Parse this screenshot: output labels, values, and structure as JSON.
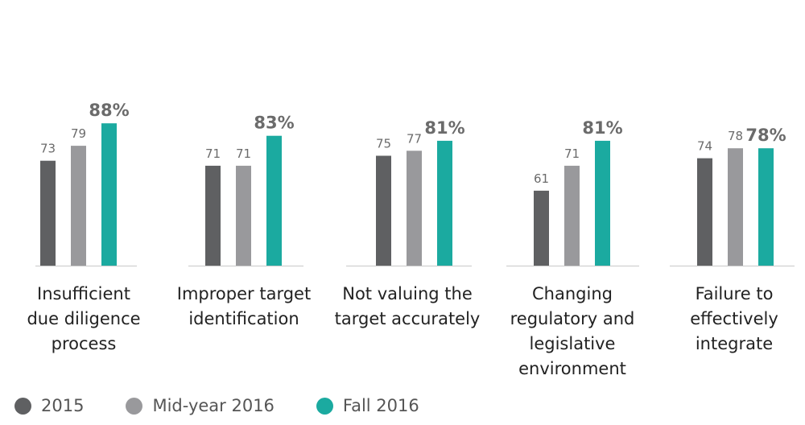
{
  "chart_data": {
    "type": "bar",
    "categories": [
      "Insufficient due diligence process",
      "Improper target identification",
      "Not valuing the target accurately",
      "Changing regulatory and legislative environment",
      "Failure to effectively integrate"
    ],
    "category_lines": [
      [
        "Insufficient",
        "due diligence",
        "process"
      ],
      [
        "Improper target",
        "identification"
      ],
      [
        "Not valuing the",
        "target accurately"
      ],
      [
        "Changing",
        "regulatory and",
        "legislative",
        "environment"
      ],
      [
        "Failure to",
        "effectively",
        "integrate"
      ]
    ],
    "series": [
      {
        "name": "2015",
        "values": [
          73,
          71,
          75,
          61,
          74
        ],
        "color": "#5f6062",
        "label_suffix": ""
      },
      {
        "name": "Mid-year 2016",
        "values": [
          79,
          71,
          77,
          71,
          78
        ],
        "color": "#99999c",
        "label_suffix": ""
      },
      {
        "name": "Fall 2016",
        "values": [
          88,
          83,
          81,
          81,
          78
        ],
        "color": "#1baaa0",
        "label_suffix": "%"
      }
    ],
    "legend_position": "bottom-left",
    "grid": false,
    "baseline_color": "#c9c9c9",
    "ylim": [
      0,
      100
    ]
  }
}
